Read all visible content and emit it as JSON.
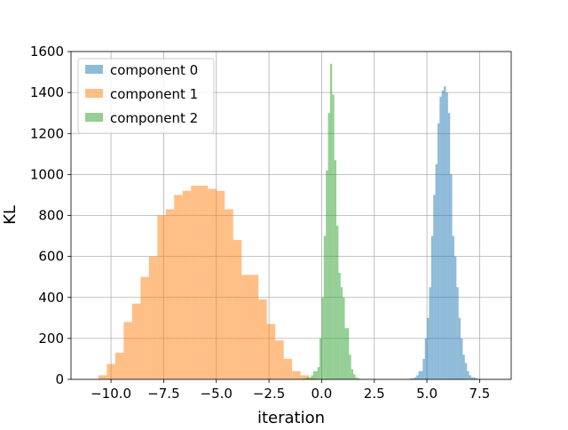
{
  "chart_data": {
    "type": "histogram",
    "xlabel": "iteration",
    "ylabel": "KL",
    "xlim": [
      -11.9,
      9.0
    ],
    "ylim": [
      0,
      1600
    ],
    "xticks": [
      -10.0,
      -7.5,
      -5.0,
      -2.5,
      0.0,
      2.5,
      5.0,
      7.5
    ],
    "xtick_labels": [
      "−10.0",
      "−7.5",
      "−5.0",
      "−2.5",
      "0.0",
      "2.5",
      "5.0",
      "7.5"
    ],
    "yticks": [
      0,
      200,
      400,
      600,
      800,
      1000,
      1200,
      1400,
      1600
    ],
    "ytick_labels": [
      "0",
      "200",
      "400",
      "600",
      "800",
      "1000",
      "1200",
      "1400",
      "1600"
    ],
    "grid": true,
    "legend_position": "top-left",
    "series": [
      {
        "name": "component 0",
        "color": "#1f77b4",
        "opacity": 0.5,
        "bin_edges": [
          4.2,
          4.4,
          4.5,
          4.6,
          4.8,
          4.9,
          5.0,
          5.1,
          5.2,
          5.3,
          5.4,
          5.5,
          5.6,
          5.7,
          5.8,
          5.9,
          6.0,
          6.1,
          6.2,
          6.3,
          6.4,
          6.5,
          6.6,
          6.7,
          6.8,
          6.9,
          7.0,
          7.1,
          7.3,
          7.4
        ],
        "counts": [
          5,
          10,
          20,
          40,
          100,
          200,
          300,
          450,
          700,
          900,
          1050,
          1250,
          1380,
          1410,
          1430,
          1400,
          1300,
          1000,
          700,
          600,
          450,
          300,
          200,
          120,
          80,
          40,
          20,
          10,
          5
        ]
      },
      {
        "name": "component 1",
        "color": "#ff7f0e",
        "opacity": 0.5,
        "bin_edges": [
          -10.6,
          -10.2,
          -9.8,
          -9.4,
          -9.0,
          -8.6,
          -8.2,
          -7.8,
          -7.4,
          -7.0,
          -6.6,
          -6.2,
          -5.8,
          -5.4,
          -5.0,
          -4.6,
          -4.2,
          -3.8,
          -3.4,
          -3.0,
          -2.6,
          -2.2,
          -1.8,
          -1.4,
          -1.0,
          -0.6,
          -0.2
        ],
        "counts": [
          20,
          75,
          130,
          280,
          370,
          500,
          600,
          800,
          830,
          900,
          920,
          945,
          945,
          930,
          920,
          830,
          680,
          510,
          510,
          390,
          270,
          190,
          100,
          40,
          20,
          5
        ]
      },
      {
        "name": "component 2",
        "color": "#2ca02c",
        "opacity": 0.5,
        "bin_edges": [
          -0.9,
          -0.7,
          -0.5,
          -0.4,
          -0.2,
          -0.1,
          0.0,
          0.1,
          0.2,
          0.3,
          0.4,
          0.5,
          0.6,
          0.7,
          0.8,
          0.9,
          1.0,
          1.1,
          1.2,
          1.3,
          1.4,
          1.5,
          1.6,
          1.7,
          1.8,
          2.0
        ],
        "counts": [
          5,
          10,
          20,
          40,
          60,
          200,
          400,
          700,
          1020,
          1300,
          1540,
          1390,
          1070,
          750,
          520,
          450,
          400,
          250,
          250,
          120,
          50,
          25,
          10,
          5,
          2
        ]
      }
    ]
  }
}
